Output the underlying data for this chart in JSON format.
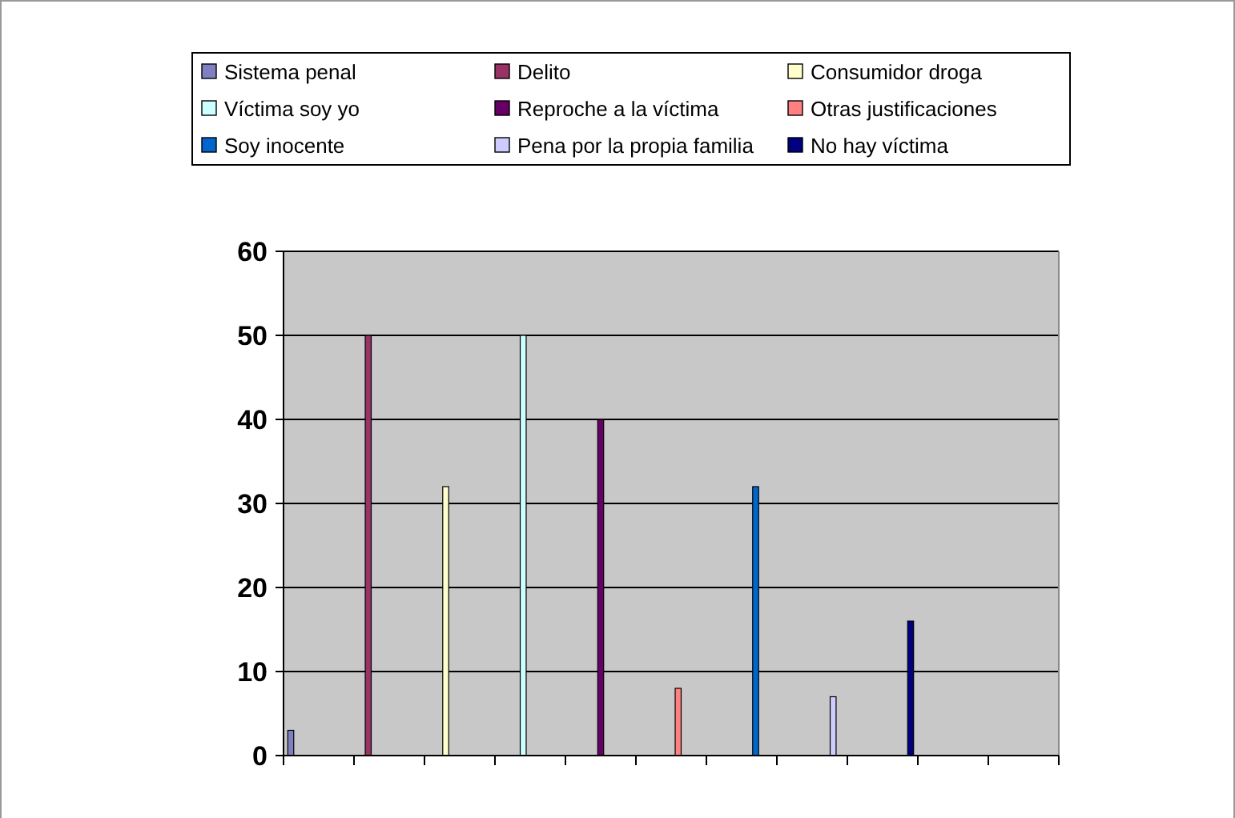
{
  "chart_data": {
    "type": "bar",
    "categories": [
      null,
      null,
      null,
      null,
      null,
      null,
      null,
      null,
      null,
      null,
      null
    ],
    "series": [
      {
        "name": "Sistema penal",
        "color": "#8080c0",
        "values": [
          3,
          null,
          null,
          null,
          null,
          null,
          null,
          null,
          null,
          null,
          null
        ]
      },
      {
        "name": "Delito",
        "color": "#993366",
        "values": [
          null,
          50,
          null,
          null,
          null,
          null,
          null,
          null,
          null,
          null,
          null
        ]
      },
      {
        "name": "Consumidor droga",
        "color": "#ffffcc",
        "values": [
          null,
          null,
          32,
          null,
          null,
          null,
          null,
          null,
          null,
          null,
          null
        ]
      },
      {
        "name": "Víctima soy yo",
        "color": "#ccffff",
        "values": [
          null,
          null,
          null,
          50,
          null,
          null,
          null,
          null,
          null,
          null,
          null
        ]
      },
      {
        "name": "Reproche a la víctima",
        "color": "#660066",
        "values": [
          null,
          null,
          null,
          null,
          40,
          null,
          null,
          null,
          null,
          null,
          null
        ]
      },
      {
        "name": "Otras justificaciones",
        "color": "#ff8080",
        "values": [
          null,
          null,
          null,
          null,
          null,
          8,
          null,
          null,
          null,
          null,
          null
        ]
      },
      {
        "name": "Soy inocente",
        "color": "#0066cc",
        "values": [
          null,
          null,
          null,
          null,
          null,
          null,
          32,
          null,
          null,
          null,
          null
        ]
      },
      {
        "name": "Pena por la propia familia",
        "color": "#ccccff",
        "values": [
          null,
          null,
          null,
          null,
          null,
          null,
          null,
          7,
          null,
          null,
          null
        ]
      },
      {
        "name": "No hay víctima",
        "color": "#000080",
        "values": [
          null,
          null,
          null,
          null,
          null,
          null,
          null,
          null,
          16,
          null,
          null
        ]
      }
    ],
    "ylim": [
      0,
      60
    ],
    "yticks": [
      0,
      10,
      20,
      30,
      40,
      50,
      60
    ],
    "grid": "y",
    "legend": "top"
  }
}
